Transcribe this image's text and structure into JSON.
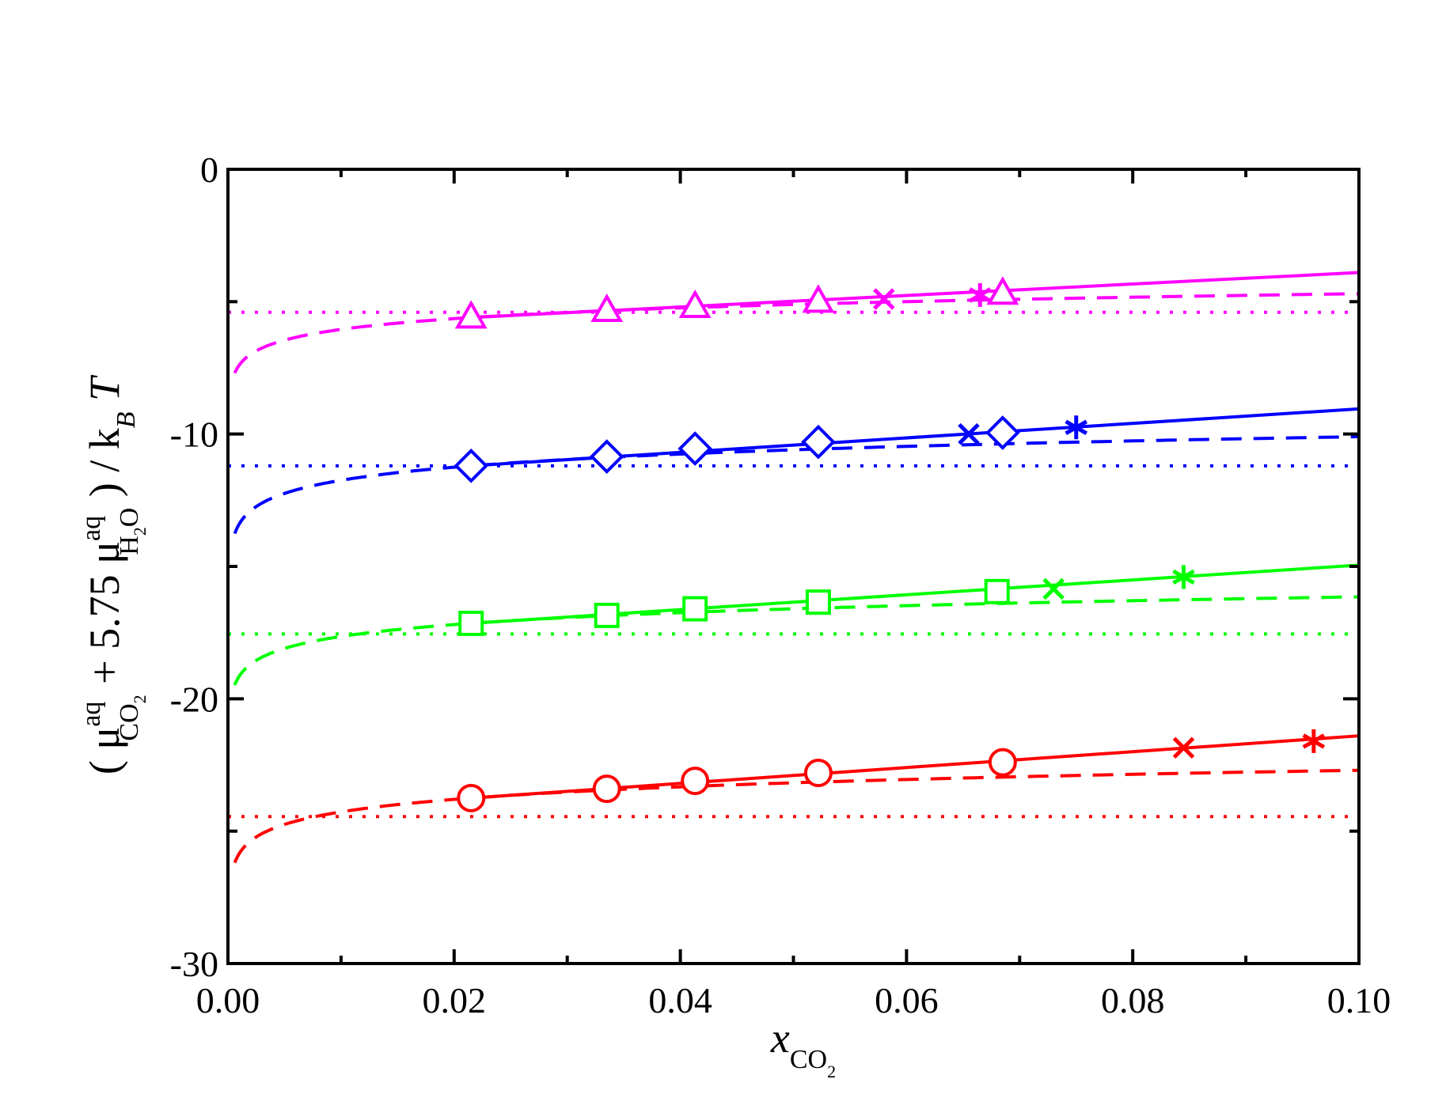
{
  "chart_data": {
    "type": "line",
    "title": "",
    "xlabel": {
      "text": "x",
      "sub": "CO",
      "subsub": "2"
    },
    "ylabel": {
      "open": "( μ",
      "sup1": "aq",
      "sub1": "CO",
      "sub1b": "2",
      "mid": " + 5.75 μ",
      "sup2": "aq",
      "sub2": "H",
      "sub2b": "2",
      "sub2c": "O",
      "close": " ) / k",
      "sub3": "B",
      "end": " T"
    },
    "xlim": [
      0,
      0.1
    ],
    "ylim": [
      -30,
      0
    ],
    "x_ticks": [
      "0.00",
      "0.02",
      "0.04",
      "0.06",
      "0.08",
      "0.10"
    ],
    "y_ticks": [
      "-30",
      "-20",
      "-10",
      "0"
    ],
    "x_minor_step": 0.01,
    "y_minor_step": 5,
    "grid": false,
    "series": [
      {
        "color": "#ff00ff",
        "marker": "triangle",
        "points": [
          [
            0.0215,
            -5.6
          ],
          [
            0.0335,
            -5.35
          ],
          [
            0.0413,
            -5.2
          ],
          [
            0.0522,
            -5.0
          ],
          [
            0.0685,
            -4.7
          ]
        ],
        "x_marker": [
          0.058,
          -4.9
        ],
        "star_marker": [
          0.0665,
          -4.75
        ],
        "fit_solid": [
          [
            0.0215,
            -5.6
          ],
          [
            0.1,
            -3.9
          ]
        ],
        "dashed_plateau": -4.7,
        "dotted_level": -5.4
      },
      {
        "color": "#0000ff",
        "marker": "diamond",
        "points": [
          [
            0.0215,
            -11.2
          ],
          [
            0.0335,
            -10.85
          ],
          [
            0.0413,
            -10.55
          ],
          [
            0.0522,
            -10.3
          ],
          [
            0.0685,
            -9.95
          ]
        ],
        "x_marker": [
          0.0655,
          -10.0
        ],
        "star_marker": [
          0.075,
          -9.75
        ],
        "fit_solid": [
          [
            0.0215,
            -11.2
          ],
          [
            0.1,
            -9.05
          ]
        ],
        "dashed_plateau": -10.1,
        "dotted_level": -11.2
      },
      {
        "color": "#00ff00",
        "marker": "square",
        "points": [
          [
            0.0215,
            -17.15
          ],
          [
            0.0335,
            -16.85
          ],
          [
            0.0413,
            -16.6
          ],
          [
            0.0522,
            -16.35
          ],
          [
            0.068,
            -15.95
          ]
        ],
        "x_marker": [
          0.073,
          -15.85
        ],
        "star_marker": [
          0.0845,
          -15.4
        ],
        "fit_solid": [
          [
            0.0215,
            -17.15
          ],
          [
            0.1,
            -14.95
          ]
        ],
        "dashed_plateau": -16.15,
        "dotted_level": -17.55
      },
      {
        "color": "#ff0000",
        "marker": "circle",
        "points": [
          [
            0.0215,
            -23.75
          ],
          [
            0.0335,
            -23.4
          ],
          [
            0.0413,
            -23.1
          ],
          [
            0.0522,
            -22.8
          ],
          [
            0.0685,
            -22.4
          ]
        ],
        "x_marker": [
          0.0845,
          -21.85
        ],
        "star_marker": [
          0.096,
          -21.6
        ],
        "fit_solid": [
          [
            0.0215,
            -23.75
          ],
          [
            0.1,
            -21.4
          ]
        ],
        "dashed_plateau": -22.7,
        "dotted_level": -24.45
      }
    ]
  }
}
